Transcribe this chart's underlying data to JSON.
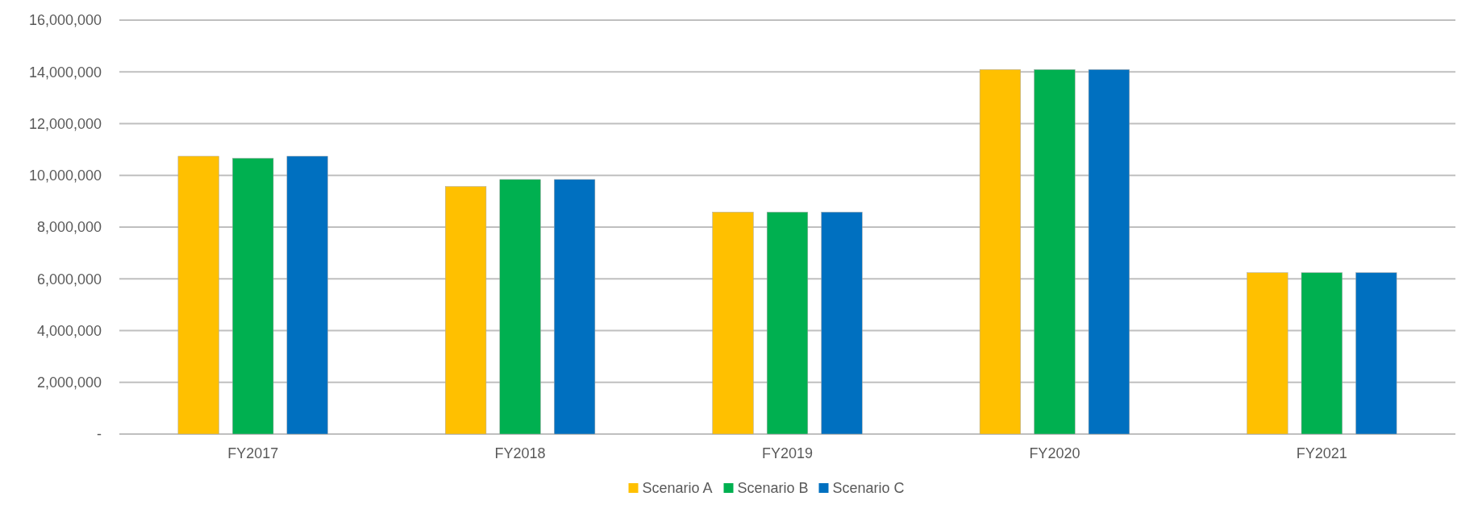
{
  "chart_data": {
    "type": "bar",
    "categories": [
      "FY2017",
      "FY2018",
      "FY2019",
      "FY2020",
      "FY2021"
    ],
    "series": [
      {
        "name": "Scenario A",
        "color": "#ffc000",
        "values": [
          10740000,
          9570000,
          8580000,
          14090000,
          6240000
        ]
      },
      {
        "name": "Scenario B",
        "color": "#00b050",
        "values": [
          10660000,
          9840000,
          8580000,
          14090000,
          6240000
        ]
      },
      {
        "name": "Scenario C",
        "color": "#0070c0",
        "values": [
          10740000,
          9840000,
          8580000,
          14090000,
          6240000
        ]
      }
    ],
    "ylim": [
      0,
      16000000
    ],
    "yticks": [
      {
        "value": 0,
        "label": "-"
      },
      {
        "value": 2000000,
        "label": "2,000,000"
      },
      {
        "value": 4000000,
        "label": "4,000,000"
      },
      {
        "value": 6000000,
        "label": "6,000,000"
      },
      {
        "value": 8000000,
        "label": "8,000,000"
      },
      {
        "value": 10000000,
        "label": "10,000,000"
      },
      {
        "value": 12000000,
        "label": "12,000,000"
      },
      {
        "value": 14000000,
        "label": "14,000,000"
      },
      {
        "value": 16000000,
        "label": "16,000,000"
      }
    ],
    "grid": "y",
    "legend": "bottom"
  }
}
